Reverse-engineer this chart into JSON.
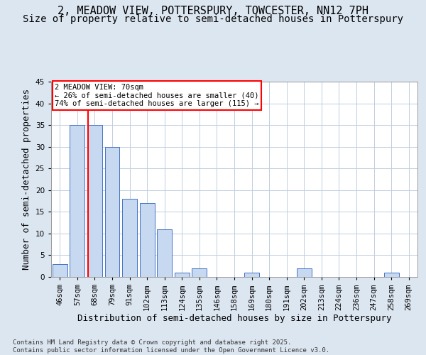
{
  "title_line1": "2, MEADOW VIEW, POTTERSPURY, TOWCESTER, NN12 7PH",
  "title_line2": "Size of property relative to semi-detached houses in Potterspury",
  "xlabel": "Distribution of semi-detached houses by size in Potterspury",
  "ylabel": "Number of semi-detached properties",
  "categories": [
    "46sqm",
    "57sqm",
    "68sqm",
    "79sqm",
    "91sqm",
    "102sqm",
    "113sqm",
    "124sqm",
    "135sqm",
    "146sqm",
    "158sqm",
    "169sqm",
    "180sqm",
    "191sqm",
    "202sqm",
    "213sqm",
    "224sqm",
    "236sqm",
    "247sqm",
    "258sqm",
    "269sqm"
  ],
  "values": [
    3,
    35,
    35,
    30,
    18,
    17,
    11,
    1,
    2,
    0,
    0,
    1,
    0,
    0,
    2,
    0,
    0,
    0,
    0,
    1,
    0
  ],
  "bar_color": "#c6d9f0",
  "bar_edge_color": "#4472c4",
  "vline_index": 1.6,
  "annotation_text": "2 MEADOW VIEW: 70sqm\n← 26% of semi-detached houses are smaller (40)\n74% of semi-detached houses are larger (115) →",
  "annotation_box_color": "white",
  "annotation_box_edge_color": "red",
  "vline_color": "red",
  "ylim": [
    0,
    45
  ],
  "yticks": [
    0,
    5,
    10,
    15,
    20,
    25,
    30,
    35,
    40,
    45
  ],
  "background_color": "#dce6f1",
  "plot_bg_color": "white",
  "grid_color": "#c0cfe0",
  "footer_text": "Contains HM Land Registry data © Crown copyright and database right 2025.\nContains public sector information licensed under the Open Government Licence v3.0.",
  "title_fontsize": 11,
  "subtitle_fontsize": 10,
  "tick_fontsize": 7.5,
  "label_fontsize": 9,
  "annot_fontsize": 7.5
}
